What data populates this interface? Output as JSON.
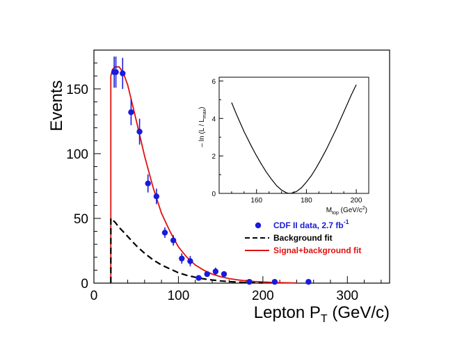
{
  "chart_data": [
    {
      "type": "line",
      "title": "",
      "xlabel": "Lepton  P",
      "xlabel_sub": "T",
      "xlabel_unit": "(GeV/c)",
      "ylabel": "Events",
      "xlim": [
        0,
        350
      ],
      "ylim": [
        0,
        180
      ],
      "xticks": [
        0,
        100,
        200,
        300
      ],
      "xtick_labels": [
        "0",
        "100",
        "200",
        "300"
      ],
      "yticks": [
        0,
        50,
        100,
        150
      ],
      "ytick_labels": [
        "0",
        "50",
        "100",
        "150"
      ],
      "grid": false,
      "legend_position": "lower-right",
      "legend": [
        {
          "label": "CDF II data,  2.7 fb",
          "sup": "-1",
          "color": "#1a1adb",
          "style": "marker"
        },
        {
          "label": "Background  fit",
          "color": "#000000",
          "style": "dashed"
        },
        {
          "label": "Signal+background  fit",
          "color": "#e01010",
          "style": "solid"
        }
      ],
      "series": [
        {
          "name": "CDF II data, 2.7 fb-1",
          "kind": "points",
          "color": "#1a1adb",
          "x": [
            24,
            26,
            34,
            44,
            54,
            64,
            74,
            84,
            94,
            104,
            114,
            124,
            134,
            144,
            154,
            184,
            214,
            254
          ],
          "y": [
            163,
            163,
            162,
            132,
            117,
            77,
            67,
            39,
            33,
            19,
            17,
            4,
            7,
            9,
            7,
            1,
            1,
            1
          ],
          "err": [
            12,
            12,
            12,
            10,
            10,
            7,
            6,
            4,
            4,
            4,
            4,
            2,
            2,
            3,
            2,
            1,
            1,
            1
          ]
        },
        {
          "name": "Signal+background fit",
          "kind": "curve",
          "color": "#e01010",
          "x": [
            20,
            20,
            22,
            25,
            30,
            35,
            40,
            50,
            60,
            70,
            80,
            90,
            100,
            110,
            120,
            130,
            140,
            150,
            160,
            170,
            180,
            190,
            200,
            210,
            220,
            230,
            240
          ],
          "y": [
            0,
            160,
            165,
            167,
            167,
            162,
            153,
            126,
            98,
            74,
            54,
            40,
            28,
            20,
            14,
            10,
            7,
            5,
            3.5,
            2.5,
            1.8,
            1.3,
            0.9,
            0.6,
            0.4,
            0.25,
            0.1
          ]
        },
        {
          "name": "Background fit",
          "kind": "curve",
          "dashed": true,
          "color": "#000000",
          "x": [
            20,
            20,
            25,
            30,
            40,
            50,
            60,
            70,
            80,
            90,
            100,
            110,
            120,
            130,
            140,
            150,
            160,
            170,
            180,
            190,
            200
          ],
          "y": [
            0,
            50,
            47,
            43,
            36,
            29,
            23,
            18,
            14,
            11,
            8,
            6,
            4.5,
            3.3,
            2.4,
            1.7,
            1.2,
            0.8,
            0.5,
            0.3,
            0.15
          ]
        }
      ]
    },
    {
      "type": "line",
      "title": "",
      "xlabel": "M",
      "xlabel_sub": "top",
      "xlabel_unit": "(GeV/c",
      "xlabel_sup": "2",
      "xlabel_end": ")",
      "ylabel": "– ln (L / L",
      "ylabel_sub": "max",
      "ylabel_end": ")",
      "xlim": [
        145,
        205
      ],
      "ylim": [
        0,
        6.2
      ],
      "xticks": [
        160,
        180,
        200
      ],
      "xtick_labels": [
        "160",
        "180",
        "200"
      ],
      "yticks": [
        0,
        2,
        4,
        6
      ],
      "ytick_labels": [
        "0",
        "2",
        "4",
        "6"
      ],
      "grid": false,
      "series": [
        {
          "name": "-ln(L/Lmax)",
          "kind": "curve",
          "color": "#000000",
          "x": [
            150,
            152,
            155,
            158,
            160,
            162,
            164,
            166,
            168,
            170,
            172,
            173,
            174,
            176,
            178,
            180,
            182,
            184,
            186,
            188,
            190,
            192,
            194,
            196,
            198,
            200
          ],
          "y": [
            4.85,
            4.2,
            3.3,
            2.5,
            2.0,
            1.55,
            1.12,
            0.75,
            0.42,
            0.18,
            0.03,
            0.0,
            0.01,
            0.1,
            0.3,
            0.6,
            0.95,
            1.38,
            1.85,
            2.35,
            2.9,
            3.45,
            4.05,
            4.65,
            5.25,
            5.8
          ]
        }
      ]
    }
  ]
}
